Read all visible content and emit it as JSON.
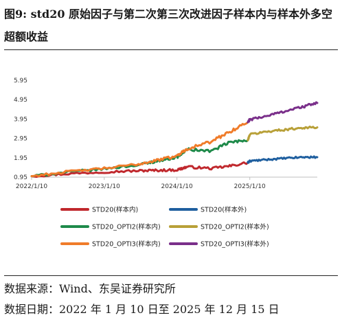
{
  "header": {
    "title": "图9: std20 原始因子与第二次第三次改进因子样本内与样本外多空超额收益"
  },
  "footer": {
    "source": "数据来源：Wind、东吴证券研究所",
    "date_range": "数据日期：2022 年 1 月 10 日至 2025 年 12 月 15 日"
  },
  "chart_data": {
    "type": "line",
    "title": "",
    "xlabel": "",
    "ylabel": "",
    "ylim": [
      0.95,
      5.95
    ],
    "yticks": [
      "0.95",
      "1.95",
      "2.95",
      "3.95",
      "4.95",
      "5.95"
    ],
    "ytick_values": [
      0.95,
      1.95,
      2.95,
      3.95,
      4.95,
      5.95
    ],
    "xlim": [
      "2022/1/10",
      "2025/12/15"
    ],
    "xticks": [
      "2022/1/10",
      "2023/1/10",
      "2024/1/10",
      "2025/1/10"
    ],
    "x_anchor_dates": [
      "2022/1/10",
      "2022/7/1",
      "2023/1/10",
      "2023/7/1",
      "2023/10/1",
      "2024/1/10",
      "2024/3/1",
      "2024/7/1",
      "2024/10/1",
      "2024/12/31",
      "2025/1/10",
      "2025/4/1",
      "2025/7/1",
      "2025/10/1",
      "2025/12/15"
    ],
    "grid": false,
    "legend_position": "bottom",
    "split_date": "2024/12/31",
    "series": [
      {
        "name": "STD20(样本内)",
        "color": "#c0282d",
        "segment": "in",
        "values": [
          1.0,
          1.12,
          1.22,
          1.28,
          1.3,
          1.32,
          1.48,
          1.4,
          1.52,
          1.7,
          null,
          null,
          null,
          null,
          null
        ]
      },
      {
        "name": "STD20(样本外)",
        "color": "#1f5f9f",
        "segment": "out",
        "values": [
          null,
          null,
          null,
          null,
          null,
          null,
          null,
          null,
          null,
          1.7,
          1.78,
          1.85,
          1.92,
          1.98,
          1.98
        ]
      },
      {
        "name": "STD20_OPTI2(样本内)",
        "color": "#1e8a4a",
        "segment": "in",
        "values": [
          1.0,
          1.2,
          1.38,
          1.58,
          1.78,
          1.98,
          2.38,
          2.3,
          2.75,
          2.85,
          null,
          null,
          null,
          null,
          null
        ]
      },
      {
        "name": "STD20_OPTI2(样本外)",
        "color": "#b8a038",
        "segment": "out",
        "values": [
          null,
          null,
          null,
          null,
          null,
          null,
          null,
          null,
          null,
          2.85,
          3.15,
          3.3,
          3.4,
          3.5,
          3.52
        ]
      },
      {
        "name": "STD20_OPTI3(样本内)",
        "color": "#f07c2a",
        "segment": "in",
        "values": [
          1.0,
          1.22,
          1.4,
          1.62,
          1.82,
          2.05,
          2.42,
          2.78,
          3.3,
          3.78,
          null,
          null,
          null,
          null,
          null
        ]
      },
      {
        "name": "STD20_OPTI3(样本外)",
        "color": "#7a2f8a",
        "segment": "out",
        "values": [
          null,
          null,
          null,
          null,
          null,
          null,
          null,
          null,
          null,
          3.78,
          3.92,
          4.1,
          4.35,
          4.58,
          4.78
        ]
      }
    ]
  }
}
